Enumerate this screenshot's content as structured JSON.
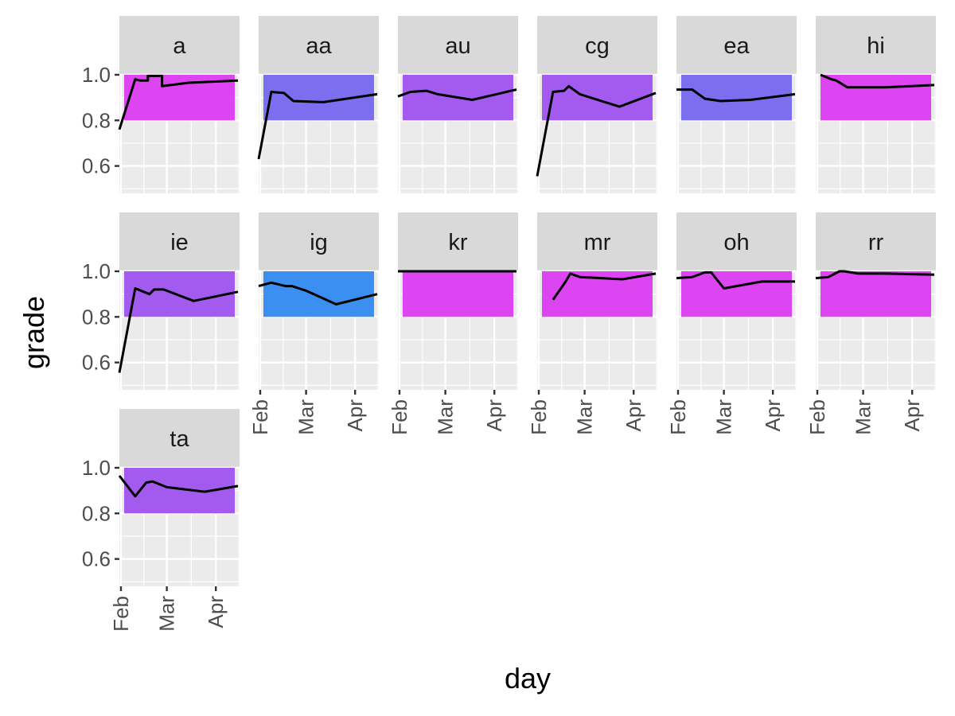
{
  "chart_data": {
    "type": "line",
    "xlabel": "day",
    "ylabel": "grade",
    "x_ticks": [
      "Feb",
      "Mar",
      "Apr"
    ],
    "x_tick_dates": [
      "2024-02-01",
      "2024-03-01",
      "2024-04-01"
    ],
    "xlim": [
      "2024-01-31",
      "2024-04-16"
    ],
    "y_ticks": [
      "0.6",
      "0.8",
      "1.0"
    ],
    "ylim": [
      0.48,
      1.0
    ],
    "band": [
      0.8,
      1.0
    ],
    "grid": true,
    "band_colors": {
      "magenta": "#dd45f2",
      "purple": "#a35bef",
      "violet": "#7b6ff0",
      "blue": "#3a8ff0"
    },
    "panels": [
      {
        "label": "a",
        "band_color": "#dd45f2",
        "points": [
          [
            "2024-01-31",
            0.76
          ],
          [
            "2024-02-10",
            0.98
          ],
          [
            "2024-02-13",
            0.975
          ],
          [
            "2024-02-18",
            0.975
          ],
          [
            "2024-02-18",
            0.995
          ],
          [
            "2024-02-27",
            0.995
          ],
          [
            "2024-02-27",
            0.95
          ],
          [
            "2024-03-15",
            0.965
          ],
          [
            "2024-04-15",
            0.975
          ]
        ]
      },
      {
        "label": "aa",
        "band_color": "#7b6ff0",
        "points": [
          [
            "2024-01-31",
            0.63
          ],
          [
            "2024-02-08",
            0.925
          ],
          [
            "2024-02-16",
            0.92
          ],
          [
            "2024-02-22",
            0.885
          ],
          [
            "2024-03-12",
            0.88
          ],
          [
            "2024-04-15",
            0.915
          ]
        ]
      },
      {
        "label": "au",
        "band_color": "#a35bef",
        "points": [
          [
            "2024-01-31",
            0.905
          ],
          [
            "2024-02-08",
            0.925
          ],
          [
            "2024-02-18",
            0.93
          ],
          [
            "2024-02-25",
            0.915
          ],
          [
            "2024-03-18",
            0.89
          ],
          [
            "2024-04-15",
            0.935
          ]
        ]
      },
      {
        "label": "cg",
        "band_color": "#a35bef",
        "points": [
          [
            "2024-01-31",
            0.555
          ],
          [
            "2024-02-10",
            0.925
          ],
          [
            "2024-02-17",
            0.93
          ],
          [
            "2024-02-20",
            0.95
          ],
          [
            "2024-02-27",
            0.915
          ],
          [
            "2024-03-23",
            0.86
          ],
          [
            "2024-04-15",
            0.92
          ]
        ]
      },
      {
        "label": "ea",
        "band_color": "#7b6ff0",
        "points": [
          [
            "2024-01-31",
            0.935
          ],
          [
            "2024-02-10",
            0.935
          ],
          [
            "2024-02-18",
            0.895
          ],
          [
            "2024-02-28",
            0.885
          ],
          [
            "2024-03-18",
            0.89
          ],
          [
            "2024-04-15",
            0.915
          ]
        ]
      },
      {
        "label": "hi",
        "band_color": "#dd45f2",
        "points": [
          [
            "2024-02-03",
            1.0
          ],
          [
            "2024-02-10",
            0.98
          ],
          [
            "2024-02-13",
            0.975
          ],
          [
            "2024-02-20",
            0.945
          ],
          [
            "2024-03-15",
            0.945
          ],
          [
            "2024-04-15",
            0.955
          ]
        ]
      },
      {
        "label": "ie",
        "band_color": "#a35bef",
        "points": [
          [
            "2024-01-31",
            0.555
          ],
          [
            "2024-02-10",
            0.925
          ],
          [
            "2024-02-19",
            0.9
          ],
          [
            "2024-02-22",
            0.92
          ],
          [
            "2024-02-28",
            0.92
          ],
          [
            "2024-03-18",
            0.87
          ],
          [
            "2024-04-15",
            0.91
          ]
        ]
      },
      {
        "label": "ig",
        "band_color": "#3a8ff0",
        "points": [
          [
            "2024-01-31",
            0.935
          ],
          [
            "2024-02-08",
            0.95
          ],
          [
            "2024-02-17",
            0.935
          ],
          [
            "2024-02-21",
            0.935
          ],
          [
            "2024-03-01",
            0.915
          ],
          [
            "2024-03-20",
            0.855
          ],
          [
            "2024-04-15",
            0.9
          ]
        ]
      },
      {
        "label": "kr",
        "band_color": "#dd45f2",
        "points": [
          [
            "2024-01-31",
            1.0
          ],
          [
            "2024-04-15",
            1.0
          ]
        ]
      },
      {
        "label": "mr",
        "band_color": "#dd45f2",
        "points": [
          [
            "2024-02-10",
            0.875
          ],
          [
            "2024-02-18",
            0.955
          ],
          [
            "2024-02-21",
            0.99
          ],
          [
            "2024-02-27",
            0.975
          ],
          [
            "2024-03-25",
            0.965
          ],
          [
            "2024-04-15",
            0.99
          ]
        ]
      },
      {
        "label": "oh",
        "band_color": "#dd45f2",
        "points": [
          [
            "2024-01-31",
            0.97
          ],
          [
            "2024-02-10",
            0.975
          ],
          [
            "2024-02-18",
            0.995
          ],
          [
            "2024-02-22",
            0.995
          ],
          [
            "2024-03-01",
            0.925
          ],
          [
            "2024-03-25",
            0.955
          ],
          [
            "2024-04-15",
            0.955
          ]
        ]
      },
      {
        "label": "rr",
        "band_color": "#dd45f2",
        "points": [
          [
            "2024-01-31",
            0.97
          ],
          [
            "2024-02-08",
            0.975
          ],
          [
            "2024-02-15",
            1.0
          ],
          [
            "2024-02-18",
            1.0
          ],
          [
            "2024-02-27",
            0.99
          ],
          [
            "2024-03-15",
            0.99
          ],
          [
            "2024-04-15",
            0.985
          ]
        ]
      },
      {
        "label": "ta",
        "band_color": "#a35bef",
        "points": [
          [
            "2024-01-31",
            0.965
          ],
          [
            "2024-02-10",
            0.875
          ],
          [
            "2024-02-17",
            0.935
          ],
          [
            "2024-02-21",
            0.94
          ],
          [
            "2024-03-01",
            0.915
          ],
          [
            "2024-03-25",
            0.895
          ],
          [
            "2024-04-15",
            0.92
          ]
        ]
      }
    ]
  }
}
